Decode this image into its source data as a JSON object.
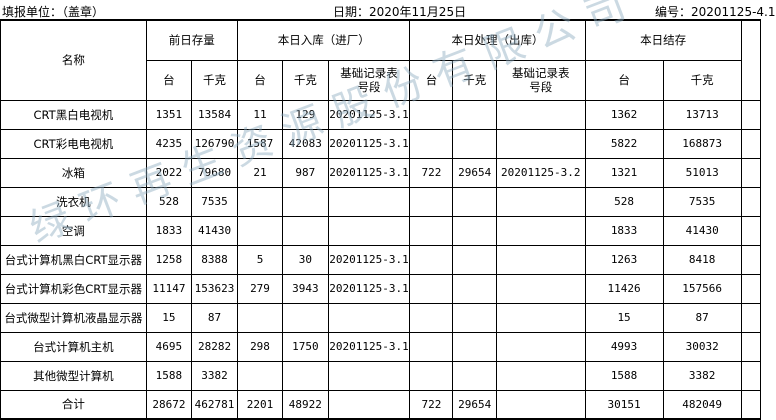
{
  "header": {
    "unit_label": "填报单位：（盖章）",
    "date_label": "日期：2020年11月25日",
    "number_label": "编号：20201125-4.1"
  },
  "columns": {
    "name": "名称",
    "prev_stock": "前日存量",
    "inbound": "本日入库（进厂）",
    "outbound": "本日处理（出库）",
    "closing": "本日结存",
    "unit": "台",
    "kg": "千克",
    "record_no": "基础记录表号段"
  },
  "rows": [
    {
      "name": "CRT黑白电视机",
      "prev_units": "1351",
      "prev_kg": "13584",
      "in_units": "11",
      "in_kg": "129",
      "in_record": "20201125-3.1",
      "out_units": "",
      "out_kg": "",
      "out_record": "",
      "close_units": "1362",
      "close_kg": "13713"
    },
    {
      "name": "CRT彩电电视机",
      "prev_units": "4235",
      "prev_kg": "126790",
      "in_units": "1587",
      "in_kg": "42083",
      "in_record": "20201125-3.1",
      "out_units": "",
      "out_kg": "",
      "out_record": "",
      "close_units": "5822",
      "close_kg": "168873"
    },
    {
      "name": "冰箱",
      "prev_units": "2022",
      "prev_kg": "79680",
      "in_units": "21",
      "in_kg": "987",
      "in_record": "20201125-3.1",
      "out_units": "722",
      "out_kg": "29654",
      "out_record": "20201125-3.2",
      "close_units": "1321",
      "close_kg": "51013"
    },
    {
      "name": "洗衣机",
      "prev_units": "528",
      "prev_kg": "7535",
      "in_units": "",
      "in_kg": "",
      "in_record": "",
      "out_units": "",
      "out_kg": "",
      "out_record": "",
      "close_units": "528",
      "close_kg": "7535"
    },
    {
      "name": "空调",
      "prev_units": "1833",
      "prev_kg": "41430",
      "in_units": "",
      "in_kg": "",
      "in_record": "",
      "out_units": "",
      "out_kg": "",
      "out_record": "",
      "close_units": "1833",
      "close_kg": "41430"
    },
    {
      "name": "台式计算机黑白CRT显示器",
      "prev_units": "1258",
      "prev_kg": "8388",
      "in_units": "5",
      "in_kg": "30",
      "in_record": "20201125-3.1",
      "out_units": "",
      "out_kg": "",
      "out_record": "",
      "close_units": "1263",
      "close_kg": "8418"
    },
    {
      "name": "台式计算机彩色CRT显示器",
      "prev_units": "11147",
      "prev_kg": "153623",
      "in_units": "279",
      "in_kg": "3943",
      "in_record": "20201125-3.1",
      "out_units": "",
      "out_kg": "",
      "out_record": "",
      "close_units": "11426",
      "close_kg": "157566"
    },
    {
      "name": "台式微型计算机液晶显示器",
      "prev_units": "15",
      "prev_kg": "87",
      "in_units": "",
      "in_kg": "",
      "in_record": "",
      "out_units": "",
      "out_kg": "",
      "out_record": "",
      "close_units": "15",
      "close_kg": "87"
    },
    {
      "name": "台式计算机主机",
      "prev_units": "4695",
      "prev_kg": "28282",
      "in_units": "298",
      "in_kg": "1750",
      "in_record": "20201125-3.1",
      "out_units": "",
      "out_kg": "",
      "out_record": "",
      "close_units": "4993",
      "close_kg": "30032"
    },
    {
      "name": "其他微型计算机",
      "prev_units": "1588",
      "prev_kg": "3382",
      "in_units": "",
      "in_kg": "",
      "in_record": "",
      "out_units": "",
      "out_kg": "",
      "out_record": "",
      "close_units": "1588",
      "close_kg": "3382"
    },
    {
      "name": "合计",
      "prev_units": "28672",
      "prev_kg": "462781",
      "in_units": "2201",
      "in_kg": "48922",
      "in_record": "",
      "out_units": "722",
      "out_kg": "29654",
      "out_record": "",
      "close_units": "30151",
      "close_kg": "482049"
    }
  ],
  "watermark": "绿环再生资源股份有限公司"
}
